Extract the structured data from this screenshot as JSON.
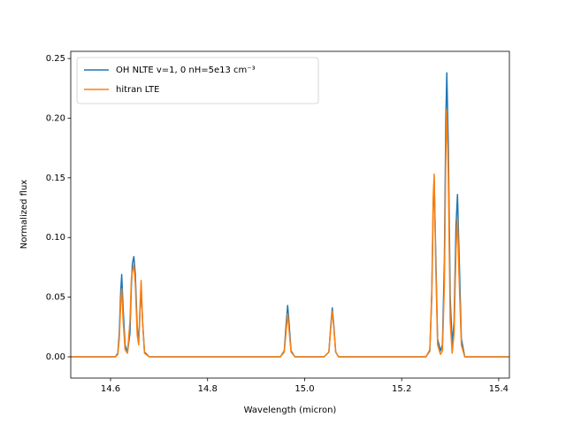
{
  "chart_data": {
    "type": "line",
    "x_label": "Wavelength (micron)",
    "y_label": "Normalized flux",
    "x": [
      14.518,
      14.61,
      14.615,
      14.618,
      14.621,
      14.623,
      14.626,
      14.63,
      14.635,
      14.64,
      14.643,
      14.645,
      14.648,
      14.651,
      14.655,
      14.658,
      14.661,
      14.663,
      14.666,
      14.67,
      14.68,
      14.95,
      14.958,
      14.962,
      14.965,
      14.968,
      14.972,
      14.98,
      15.04,
      15.05,
      15.054,
      15.057,
      15.06,
      15.064,
      15.07,
      15.25,
      15.258,
      15.262,
      15.265,
      15.267,
      15.27,
      15.274,
      15.28,
      15.284,
      15.288,
      15.291,
      15.293,
      15.296,
      15.3,
      15.304,
      15.308,
      15.312,
      15.315,
      15.318,
      15.323,
      15.33,
      15.422
    ],
    "series": [
      {
        "name": "OH NLTE v=1, 0 nH=5e13 cm⁻³",
        "color": "#1f77b4",
        "values": [
          0,
          0,
          0.003,
          0.02,
          0.055,
          0.069,
          0.04,
          0.01,
          0.004,
          0.02,
          0.06,
          0.078,
          0.084,
          0.07,
          0.025,
          0.012,
          0.04,
          0.061,
          0.03,
          0.004,
          0,
          0,
          0.005,
          0.028,
          0.043,
          0.028,
          0.005,
          0,
          0,
          0.004,
          0.027,
          0.041,
          0.027,
          0.004,
          0,
          0,
          0.005,
          0.05,
          0.125,
          0.148,
          0.09,
          0.015,
          0.005,
          0.01,
          0.08,
          0.2,
          0.238,
          0.18,
          0.05,
          0.01,
          0.03,
          0.11,
          0.136,
          0.09,
          0.015,
          0,
          0
        ]
      },
      {
        "name": "hitran LTE",
        "color": "#ff7f0e",
        "values": [
          0,
          0,
          0.002,
          0.015,
          0.045,
          0.057,
          0.03,
          0.006,
          0.003,
          0.03,
          0.066,
          0.071,
          0.077,
          0.062,
          0.018,
          0.01,
          0.045,
          0.064,
          0.03,
          0.003,
          0,
          0,
          0.004,
          0.022,
          0.036,
          0.022,
          0.004,
          0,
          0,
          0.004,
          0.025,
          0.038,
          0.025,
          0.004,
          0,
          0,
          0.006,
          0.055,
          0.135,
          0.153,
          0.08,
          0.01,
          0.002,
          0.005,
          0.06,
          0.17,
          0.207,
          0.155,
          0.03,
          0.003,
          0.02,
          0.09,
          0.116,
          0.07,
          0.01,
          0,
          0
        ]
      }
    ],
    "xlim": [
      14.518,
      15.422
    ],
    "ylim": [
      -0.0178,
      0.256
    ],
    "xticks": [
      14.6,
      14.8,
      {
        "value": 15.0,
        "label": "15.0"
      },
      15.2,
      15.4
    ],
    "yticks": [
      {
        "value": 0,
        "label": "0.00"
      },
      {
        "value": 0.05,
        "label": "0.05"
      },
      {
        "value": 0.1,
        "label": "0.10"
      },
      {
        "value": 0.15,
        "label": "0.15"
      },
      {
        "value": 0.2,
        "label": "0.20"
      },
      {
        "value": 0.25,
        "label": "0.25"
      }
    ],
    "legend": "upper left",
    "grid": false
  }
}
